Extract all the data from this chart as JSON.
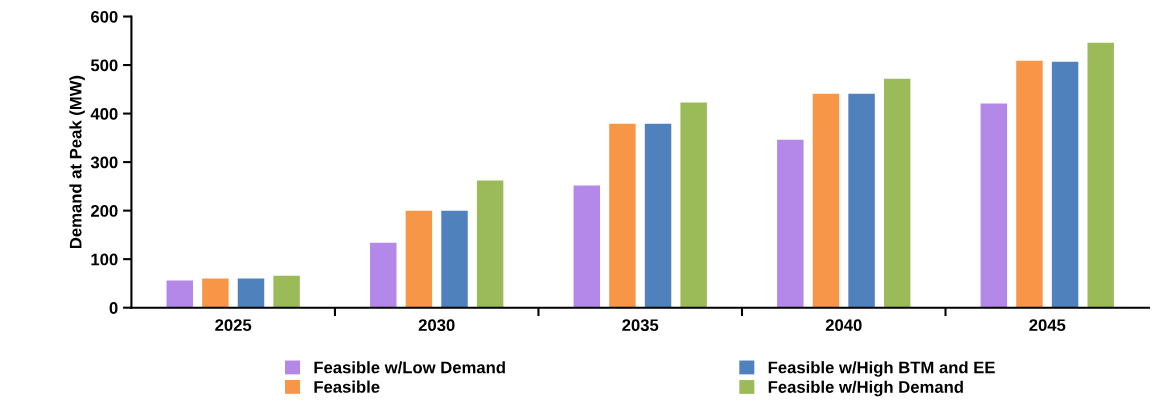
{
  "chart_data": {
    "type": "bar",
    "ylabel": "Demand at Peak (MW)",
    "categories": [
      "2025",
      "2030",
      "2035",
      "2040",
      "2045"
    ],
    "series": [
      {
        "name": "Feasible w/Low Demand",
        "color": "#b388e8",
        "values": [
          56,
          134,
          252,
          346,
          421
        ]
      },
      {
        "name": "Feasible",
        "color": "#f79646",
        "values": [
          60,
          200,
          379,
          441,
          509
        ]
      },
      {
        "name": "Feasible w/High BTM and EE",
        "color": "#4f81bd",
        "values": [
          60,
          200,
          379,
          441,
          507
        ]
      },
      {
        "name": "Feasible w/High Demand",
        "color": "#9bbb59",
        "values": [
          66,
          262,
          423,
          472,
          546
        ]
      }
    ],
    "ylim": [
      0,
      600
    ],
    "yticks": [
      0,
      100,
      200,
      300,
      400,
      500,
      600
    ],
    "grid": false,
    "legend": "bottom"
  }
}
